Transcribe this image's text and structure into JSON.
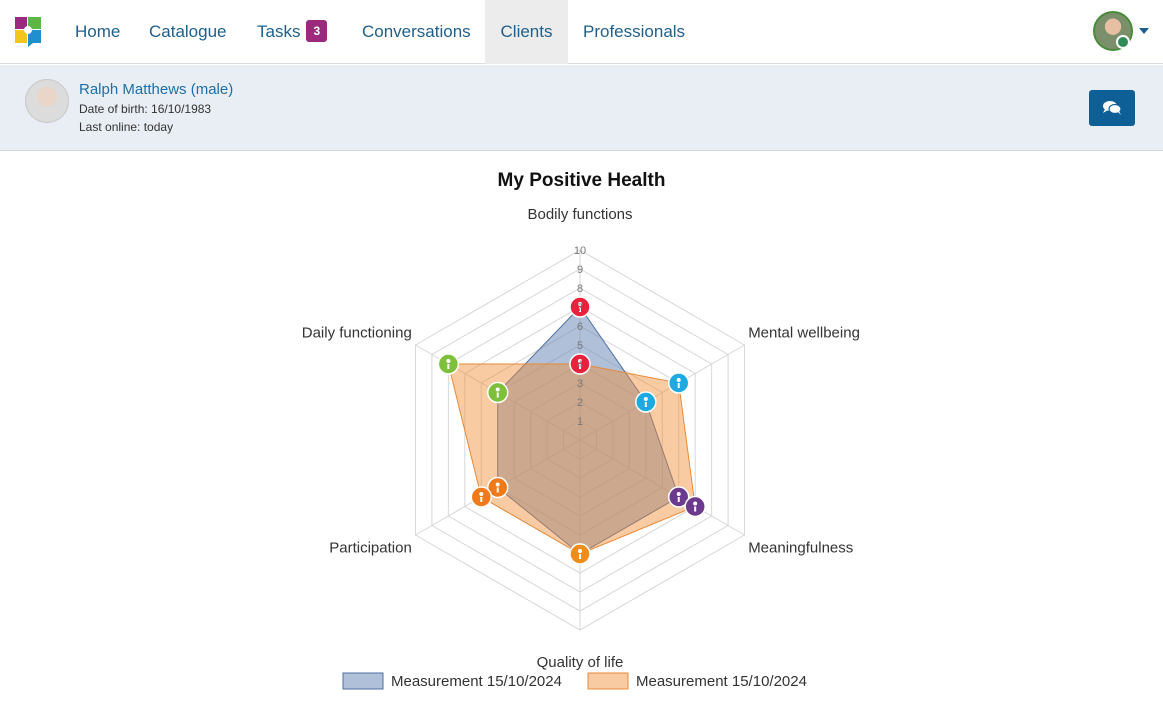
{
  "nav": {
    "items": [
      {
        "label": "Home"
      },
      {
        "label": "Catalogue"
      },
      {
        "label": "Tasks",
        "badge": "3"
      },
      {
        "label": "Conversations"
      },
      {
        "label": "Clients",
        "active": true
      },
      {
        "label": "Professionals"
      }
    ]
  },
  "client": {
    "name": "Ralph Matthews (male)",
    "dob": "Date of birth: 16/10/1983",
    "last_online": "Last online: today"
  },
  "colors": {
    "brand": "#1f5f8b",
    "badge": "#9b2a7f",
    "series1": "#7f9cc8",
    "series2": "#f5a25c"
  },
  "chart_data": {
    "type": "radar",
    "title": "My Positive Health",
    "axes": [
      "Bodily functions",
      "Mental wellbeing",
      "Meaningfulness",
      "Quality of life",
      "Participation",
      "Daily functioning"
    ],
    "ticks": [
      "1",
      "2",
      "3",
      "4",
      "5",
      "6",
      "7",
      "8",
      "9",
      "10"
    ],
    "range": [
      0,
      10
    ],
    "series": [
      {
        "name": "Measurement 15/10/2024",
        "values": [
          7,
          4,
          6,
          6,
          5,
          5
        ]
      },
      {
        "name": "Measurement 15/10/2024",
        "values": [
          4,
          6,
          7,
          6,
          6,
          8
        ]
      }
    ],
    "legend_position": "bottom"
  }
}
